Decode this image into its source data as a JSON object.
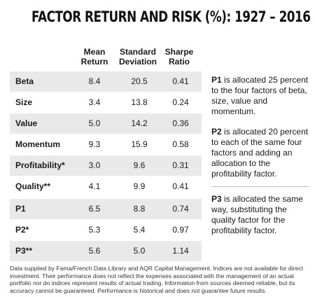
{
  "title": "FACTOR RETURN AND RISK (%): 1927 – 2016",
  "columns": {
    "mean": [
      "Mean",
      "Return"
    ],
    "std": [
      "Standard",
      "Deviation"
    ],
    "sharpe": [
      "Sharpe",
      "Ratio"
    ]
  },
  "rows": [
    {
      "name": "Beta",
      "mean": "8.4",
      "std": "20.5",
      "sharpe": "0.41"
    },
    {
      "name": "Size",
      "mean": "3.4",
      "std": "13.8",
      "sharpe": "0.24"
    },
    {
      "name": "Value",
      "mean": "5.0",
      "std": "14.2",
      "sharpe": "0.36"
    },
    {
      "name": "Momentum",
      "mean": "9.3",
      "std": "15.9",
      "sharpe": "0.58"
    },
    {
      "name": "Profitability*",
      "mean": "3.0",
      "std": "9.6",
      "sharpe": "0.31"
    },
    {
      "name": "Quality**",
      "mean": "4.1",
      "std": "9.9",
      "sharpe": "0.41"
    },
    {
      "name": "P1",
      "mean": "6.5",
      "std": "8.8",
      "sharpe": "0.74"
    },
    {
      "name": "P2*",
      "mean": "5.3",
      "std": "5.4",
      "sharpe": "0.97"
    },
    {
      "name": "P3**",
      "mean": "5.6",
      "std": "5.0",
      "sharpe": "1.14"
    }
  ],
  "notes": [
    {
      "label": "P1",
      "text": " is allocated 25 percent to the four factors of beta, size, value and momentum."
    },
    {
      "label": "P2",
      "text": " is allocated 20 percent to each of the same four factors and adding an allocation to the profitability factor."
    },
    {
      "label": "P3",
      "text": " is allocated the same way, substituting the quality factor for the profitability factor."
    }
  ],
  "footer": "Data supplied by Fama/French Data Library and AQR Capital Management. Indices are not available for direct investment. Their performance does not reflect the expenses associated with the management of an actual portfolio nor do indices represent results of actual trading. Information from sources deemed reliable, but its accuracy cannot be guaranteed. Performance is historical and does not guarantee future results."
}
